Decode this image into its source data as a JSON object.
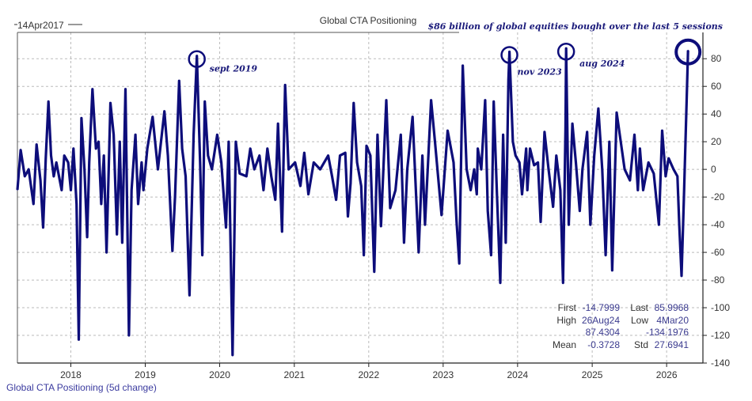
{
  "chart_data": {
    "type": "line",
    "title": "Global CTA Positioning",
    "start_label": "14Apr2017",
    "legend_label": "Global CTA Positioning (5d change)",
    "headline_annotation": "$86 billion of global equities bought over the last 5 sessions",
    "line_color": "#0d0d7a",
    "grid": true,
    "y_axis_side": "right",
    "ylim": [
      -140,
      99
    ],
    "yticks": [
      80,
      60,
      40,
      20,
      0,
      -20,
      -40,
      -60,
      -80,
      -100,
      -120,
      -140
    ],
    "xlim": [
      "2017-04-14",
      "2026-06-28"
    ],
    "xticks": [
      "2018",
      "2019",
      "2020",
      "2021",
      "2022",
      "2023",
      "2024",
      "2025",
      "2026"
    ],
    "annotations": [
      {
        "label": "sept 2019",
        "date": "2019-09-11",
        "value": 82
      },
      {
        "label": "nov 2023",
        "date": "2023-11-22",
        "value": 85
      },
      {
        "label": "aug 2024",
        "date": "2024-08-26",
        "value": 87.4304
      },
      {
        "label": "",
        "date": "2026-04-16",
        "value": 85.9968
      }
    ],
    "stats": {
      "first_label": "First",
      "first": "-14.7999",
      "last_label": "Last",
      "last": "85.9968",
      "high_label": "High",
      "high_date": "26Aug24",
      "high": "87.4304",
      "low_label": "Low",
      "low_date": "4Mar20",
      "low": "-134.1976",
      "mean_label": "Mean",
      "mean": "-0.3728",
      "std_label": "Std",
      "std": "27.6941"
    },
    "series": [
      {
        "points": [
          [
            "2017-04-14",
            -14.8
          ],
          [
            "2017-04-30",
            14
          ],
          [
            "2017-05-20",
            -5
          ],
          [
            "2017-06-08",
            0
          ],
          [
            "2017-07-02",
            -25
          ],
          [
            "2017-07-17",
            18
          ],
          [
            "2017-08-05",
            -8
          ],
          [
            "2017-08-18",
            -42
          ],
          [
            "2017-08-31",
            8
          ],
          [
            "2017-09-13",
            49
          ],
          [
            "2017-09-26",
            10
          ],
          [
            "2017-10-09",
            -5
          ],
          [
            "2017-10-22",
            5
          ],
          [
            "2017-11-17",
            -15
          ],
          [
            "2017-11-30",
            10
          ],
          [
            "2017-12-19",
            5
          ],
          [
            "2018-01-01",
            -15
          ],
          [
            "2018-01-14",
            15
          ],
          [
            "2018-01-29",
            -25
          ],
          [
            "2018-02-09",
            -123
          ],
          [
            "2018-02-22",
            37
          ],
          [
            "2018-03-09",
            0
          ],
          [
            "2018-03-22",
            -49
          ],
          [
            "2018-04-01",
            5
          ],
          [
            "2018-04-17",
            58
          ],
          [
            "2018-05-04",
            15
          ],
          [
            "2018-05-17",
            20
          ],
          [
            "2018-05-30",
            -25
          ],
          [
            "2018-06-12",
            10
          ],
          [
            "2018-06-25",
            -60
          ],
          [
            "2018-07-14",
            48
          ],
          [
            "2018-07-30",
            25
          ],
          [
            "2018-08-15",
            -47
          ],
          [
            "2018-08-29",
            20
          ],
          [
            "2018-09-10",
            -53
          ],
          [
            "2018-09-26",
            58
          ],
          [
            "2018-10-13",
            -120
          ],
          [
            "2018-10-26",
            -15
          ],
          [
            "2018-11-14",
            25
          ],
          [
            "2018-11-27",
            -25
          ],
          [
            "2018-12-14",
            5
          ],
          [
            "2018-12-23",
            -15
          ],
          [
            "2019-01-11",
            15
          ],
          [
            "2019-02-06",
            38
          ],
          [
            "2019-03-04",
            0
          ],
          [
            "2019-04-05",
            42
          ],
          [
            "2019-04-22",
            10
          ],
          [
            "2019-05-14",
            -59
          ],
          [
            "2019-05-27",
            -20
          ],
          [
            "2019-06-16",
            64
          ],
          [
            "2019-07-01",
            15
          ],
          [
            "2019-07-18",
            -5
          ],
          [
            "2019-08-06",
            -91
          ],
          [
            "2019-08-26",
            25
          ],
          [
            "2019-09-11",
            82
          ],
          [
            "2019-09-27",
            5
          ],
          [
            "2019-10-08",
            -62
          ],
          [
            "2019-10-20",
            49
          ],
          [
            "2019-11-05",
            10
          ],
          [
            "2019-11-24",
            0
          ],
          [
            "2019-12-20",
            25
          ],
          [
            "2020-01-09",
            5
          ],
          [
            "2020-02-01",
            -42
          ],
          [
            "2020-02-14",
            20
          ],
          [
            "2020-03-04",
            -134.2
          ],
          [
            "2020-03-20",
            20
          ],
          [
            "2020-04-08",
            -3
          ],
          [
            "2020-05-11",
            -5
          ],
          [
            "2020-05-30",
            15
          ],
          [
            "2020-06-19",
            0
          ],
          [
            "2020-07-14",
            10
          ],
          [
            "2020-08-03",
            -15
          ],
          [
            "2020-08-22",
            15
          ],
          [
            "2020-09-10",
            -5
          ],
          [
            "2020-09-30",
            -22
          ],
          [
            "2020-10-13",
            33
          ],
          [
            "2020-11-02",
            -45
          ],
          [
            "2020-11-17",
            61
          ],
          [
            "2020-12-04",
            0
          ],
          [
            "2021-01-05",
            5
          ],
          [
            "2021-01-31",
            -12
          ],
          [
            "2021-02-19",
            12
          ],
          [
            "2021-03-11",
            -18
          ],
          [
            "2021-04-06",
            5
          ],
          [
            "2021-05-08",
            0
          ],
          [
            "2021-06-16",
            10
          ],
          [
            "2021-07-05",
            -5
          ],
          [
            "2021-07-25",
            -22
          ],
          [
            "2021-08-13",
            10
          ],
          [
            "2021-09-08",
            12
          ],
          [
            "2021-09-21",
            -34
          ],
          [
            "2021-10-04",
            -10
          ],
          [
            "2021-10-19",
            48
          ],
          [
            "2021-11-05",
            5
          ],
          [
            "2021-11-25",
            -12
          ],
          [
            "2021-12-08",
            -62
          ],
          [
            "2021-12-21",
            17
          ],
          [
            "2022-01-09",
            10
          ],
          [
            "2022-01-28",
            -74
          ],
          [
            "2022-02-13",
            25
          ],
          [
            "2022-03-02",
            -41
          ],
          [
            "2022-03-28",
            50
          ],
          [
            "2022-04-16",
            -28
          ],
          [
            "2022-05-12",
            -15
          ],
          [
            "2022-06-07",
            25
          ],
          [
            "2022-06-23",
            -53
          ],
          [
            "2022-07-09",
            0
          ],
          [
            "2022-08-04",
            38
          ],
          [
            "2022-09-03",
            -60
          ],
          [
            "2022-09-21",
            10
          ],
          [
            "2022-10-04",
            -40
          ],
          [
            "2022-11-03",
            50
          ],
          [
            "2022-11-22",
            20
          ],
          [
            "2022-12-24",
            -33
          ],
          [
            "2023-01-23",
            28
          ],
          [
            "2023-02-21",
            5
          ],
          [
            "2023-03-08",
            -38
          ],
          [
            "2023-03-21",
            -68
          ],
          [
            "2023-04-07",
            75
          ],
          [
            "2023-04-26",
            0
          ],
          [
            "2023-05-16",
            -15
          ],
          [
            "2023-06-02",
            0
          ],
          [
            "2023-06-15",
            -18
          ],
          [
            "2023-06-20",
            15
          ],
          [
            "2023-07-07",
            0
          ],
          [
            "2023-07-26",
            50
          ],
          [
            "2023-08-08",
            -30
          ],
          [
            "2023-08-24",
            -62
          ],
          [
            "2023-09-06",
            49
          ],
          [
            "2023-09-22",
            -18
          ],
          [
            "2023-10-08",
            -82
          ],
          [
            "2023-10-22",
            25
          ],
          [
            "2023-11-04",
            -53
          ],
          [
            "2023-11-17",
            65
          ],
          [
            "2023-11-22",
            85
          ],
          [
            "2023-12-09",
            20
          ],
          [
            "2023-12-22",
            10
          ],
          [
            "2024-01-10",
            5
          ],
          [
            "2024-01-23",
            -18
          ],
          [
            "2024-02-12",
            15
          ],
          [
            "2024-02-18",
            -15
          ],
          [
            "2024-03-02",
            15
          ],
          [
            "2024-03-22",
            3
          ],
          [
            "2024-04-10",
            5
          ],
          [
            "2024-04-23",
            -38
          ],
          [
            "2024-05-12",
            27
          ],
          [
            "2024-06-01",
            0
          ],
          [
            "2024-06-23",
            -27
          ],
          [
            "2024-07-09",
            10
          ],
          [
            "2024-07-29",
            -15
          ],
          [
            "2024-08-11",
            -82
          ],
          [
            "2024-08-23",
            30
          ],
          [
            "2024-08-26",
            87.43
          ],
          [
            "2024-09-08",
            -40
          ],
          [
            "2024-09-26",
            33
          ],
          [
            "2024-10-13",
            5
          ],
          [
            "2024-11-01",
            -30
          ],
          [
            "2024-11-14",
            0
          ],
          [
            "2024-12-07",
            27
          ],
          [
            "2024-12-23",
            -40
          ],
          [
            "2025-01-11",
            10
          ],
          [
            "2025-01-31",
            44
          ],
          [
            "2025-02-19",
            0
          ],
          [
            "2025-03-08",
            -62
          ],
          [
            "2025-03-26",
            20
          ],
          [
            "2025-04-09",
            -73
          ],
          [
            "2025-05-01",
            41
          ],
          [
            "2025-05-21",
            20
          ],
          [
            "2025-06-09",
            0
          ],
          [
            "2025-07-05",
            -8
          ],
          [
            "2025-07-27",
            25
          ],
          [
            "2025-08-13",
            -15
          ],
          [
            "2025-08-23",
            15
          ],
          [
            "2025-09-08",
            -15
          ],
          [
            "2025-10-04",
            5
          ],
          [
            "2025-10-30",
            -3
          ],
          [
            "2025-11-24",
            -40
          ],
          [
            "2025-12-10",
            28
          ],
          [
            "2025-12-27",
            -5
          ],
          [
            "2026-01-11",
            8
          ],
          [
            "2026-02-04",
            0
          ],
          [
            "2026-02-23",
            -5
          ],
          [
            "2026-03-04",
            -40
          ],
          [
            "2026-03-15",
            -77
          ],
          [
            "2026-03-27",
            -20
          ],
          [
            "2026-04-09",
            49
          ],
          [
            "2026-04-16",
            86.0
          ]
        ]
      }
    ]
  }
}
